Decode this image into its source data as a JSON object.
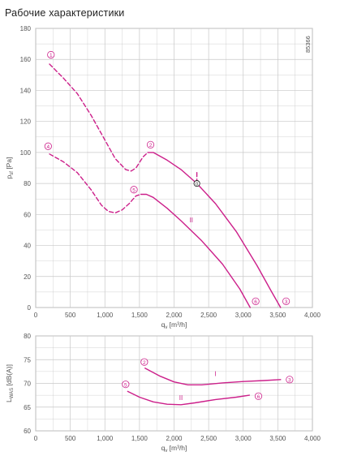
{
  "page_title": "Рабочие характеристики",
  "colors": {
    "curve": "#cc1f8a",
    "grid": "#c8c8c8",
    "axis": "#888888",
    "text": "#555555"
  },
  "chart_data": [
    {
      "type": "line",
      "id": "pressure",
      "side_code": "85366",
      "ylabel": "p_sf [Pa]",
      "xlabel": "q_v [m³/h]",
      "xlim": [
        0,
        4000
      ],
      "ylim": [
        0,
        180
      ],
      "xticks": [
        "0",
        "500",
        "1,000",
        "1,500",
        "2,000",
        "2,500",
        "3,000",
        "3,500",
        "4,000"
      ],
      "yticks": [
        "0",
        "20",
        "40",
        "60",
        "80",
        "100",
        "120",
        "140",
        "160",
        "180"
      ],
      "grid": true,
      "series": [
        {
          "name": "I",
          "style": "dashed",
          "points": [
            [
              200,
              157
            ],
            [
              400,
              148
            ],
            [
              600,
              138
            ],
            [
              800,
              124
            ],
            [
              1000,
              108
            ],
            [
              1150,
              96
            ],
            [
              1300,
              89
            ],
            [
              1380,
              88
            ],
            [
              1450,
              90
            ],
            [
              1550,
              97
            ],
            [
              1620,
              100
            ]
          ]
        },
        {
          "name": "I",
          "style": "solid",
          "points": [
            [
              1620,
              100
            ],
            [
              1700,
              100
            ],
            [
              1900,
              95
            ],
            [
              2100,
              89
            ],
            [
              2330,
              80
            ],
            [
              2600,
              67
            ],
            [
              2900,
              49
            ],
            [
              3200,
              27
            ],
            [
              3400,
              11
            ],
            [
              3540,
              0
            ]
          ]
        },
        {
          "name": "II",
          "style": "dashed",
          "points": [
            [
              200,
              99
            ],
            [
              400,
              94
            ],
            [
              600,
              87
            ],
            [
              800,
              76
            ],
            [
              950,
              66
            ],
            [
              1050,
              62
            ],
            [
              1150,
              61
            ],
            [
              1250,
              63
            ],
            [
              1350,
              67
            ],
            [
              1450,
              72
            ],
            [
              1520,
              73
            ]
          ]
        },
        {
          "name": "II",
          "style": "solid",
          "points": [
            [
              1520,
              73
            ],
            [
              1600,
              73
            ],
            [
              1700,
              71
            ],
            [
              1900,
              64
            ],
            [
              2100,
              56
            ],
            [
              2400,
              43
            ],
            [
              2700,
              28
            ],
            [
              2950,
              12
            ],
            [
              3100,
              0
            ]
          ]
        },
        {
          "name": "",
          "style": "dashed",
          "points": [
            [
              2330,
              87
            ],
            [
              2330,
              82
            ]
          ]
        }
      ],
      "markers": [
        {
          "label": "1",
          "x": 220,
          "y": 163
        },
        {
          "label": "2",
          "x": 1660,
          "y": 105
        },
        {
          "label": "3",
          "x": 3620,
          "y": 4
        },
        {
          "label": "4",
          "x": 180,
          "y": 104
        },
        {
          "label": "5",
          "x": 1420,
          "y": 76
        },
        {
          "label": "6",
          "x": 3180,
          "y": 4
        }
      ],
      "point_markers": [
        {
          "label": "0",
          "x": 2330,
          "y": 80
        }
      ],
      "curve_labels": [
        {
          "text": "II",
          "x": 2250,
          "y": 55
        }
      ]
    },
    {
      "type": "line",
      "id": "sound",
      "ylabel": "L_WAS [dB(A)]",
      "xlabel": "q_v [m³/h]",
      "xlim": [
        0,
        4000
      ],
      "ylim": [
        60,
        80
      ],
      "xticks": [
        "0",
        "500",
        "1,000",
        "1,500",
        "2,000",
        "2,500",
        "3,000",
        "3,500",
        "4,000"
      ],
      "yticks": [
        "60",
        "65",
        "70",
        "75",
        "80"
      ],
      "grid": true,
      "series": [
        {
          "name": "I",
          "style": "solid",
          "points": [
            [
              1580,
              73.2
            ],
            [
              1800,
              71.5
            ],
            [
              2000,
              70.3
            ],
            [
              2200,
              69.7
            ],
            [
              2400,
              69.7
            ],
            [
              2700,
              70.1
            ],
            [
              3000,
              70.4
            ],
            [
              3300,
              70.6
            ],
            [
              3540,
              70.8
            ]
          ]
        },
        {
          "name": "II",
          "style": "solid",
          "points": [
            [
              1330,
              68.3
            ],
            [
              1500,
              67.1
            ],
            [
              1700,
              66.1
            ],
            [
              1900,
              65.6
            ],
            [
              2100,
              65.5
            ],
            [
              2300,
              65.9
            ],
            [
              2600,
              66.6
            ],
            [
              2900,
              67.1
            ],
            [
              3090,
              67.5
            ]
          ]
        }
      ],
      "markers": [
        {
          "label": "2",
          "x": 1570,
          "y": 74.5
        },
        {
          "label": "3",
          "x": 3670,
          "y": 70.8
        },
        {
          "label": "5",
          "x": 1300,
          "y": 69.8
        },
        {
          "label": "6",
          "x": 3220,
          "y": 67.3
        }
      ],
      "curve_labels": [
        {
          "text": "I",
          "x": 2600,
          "y": 71.5
        },
        {
          "text": "II",
          "x": 2100,
          "y": 66.5
        }
      ]
    }
  ]
}
